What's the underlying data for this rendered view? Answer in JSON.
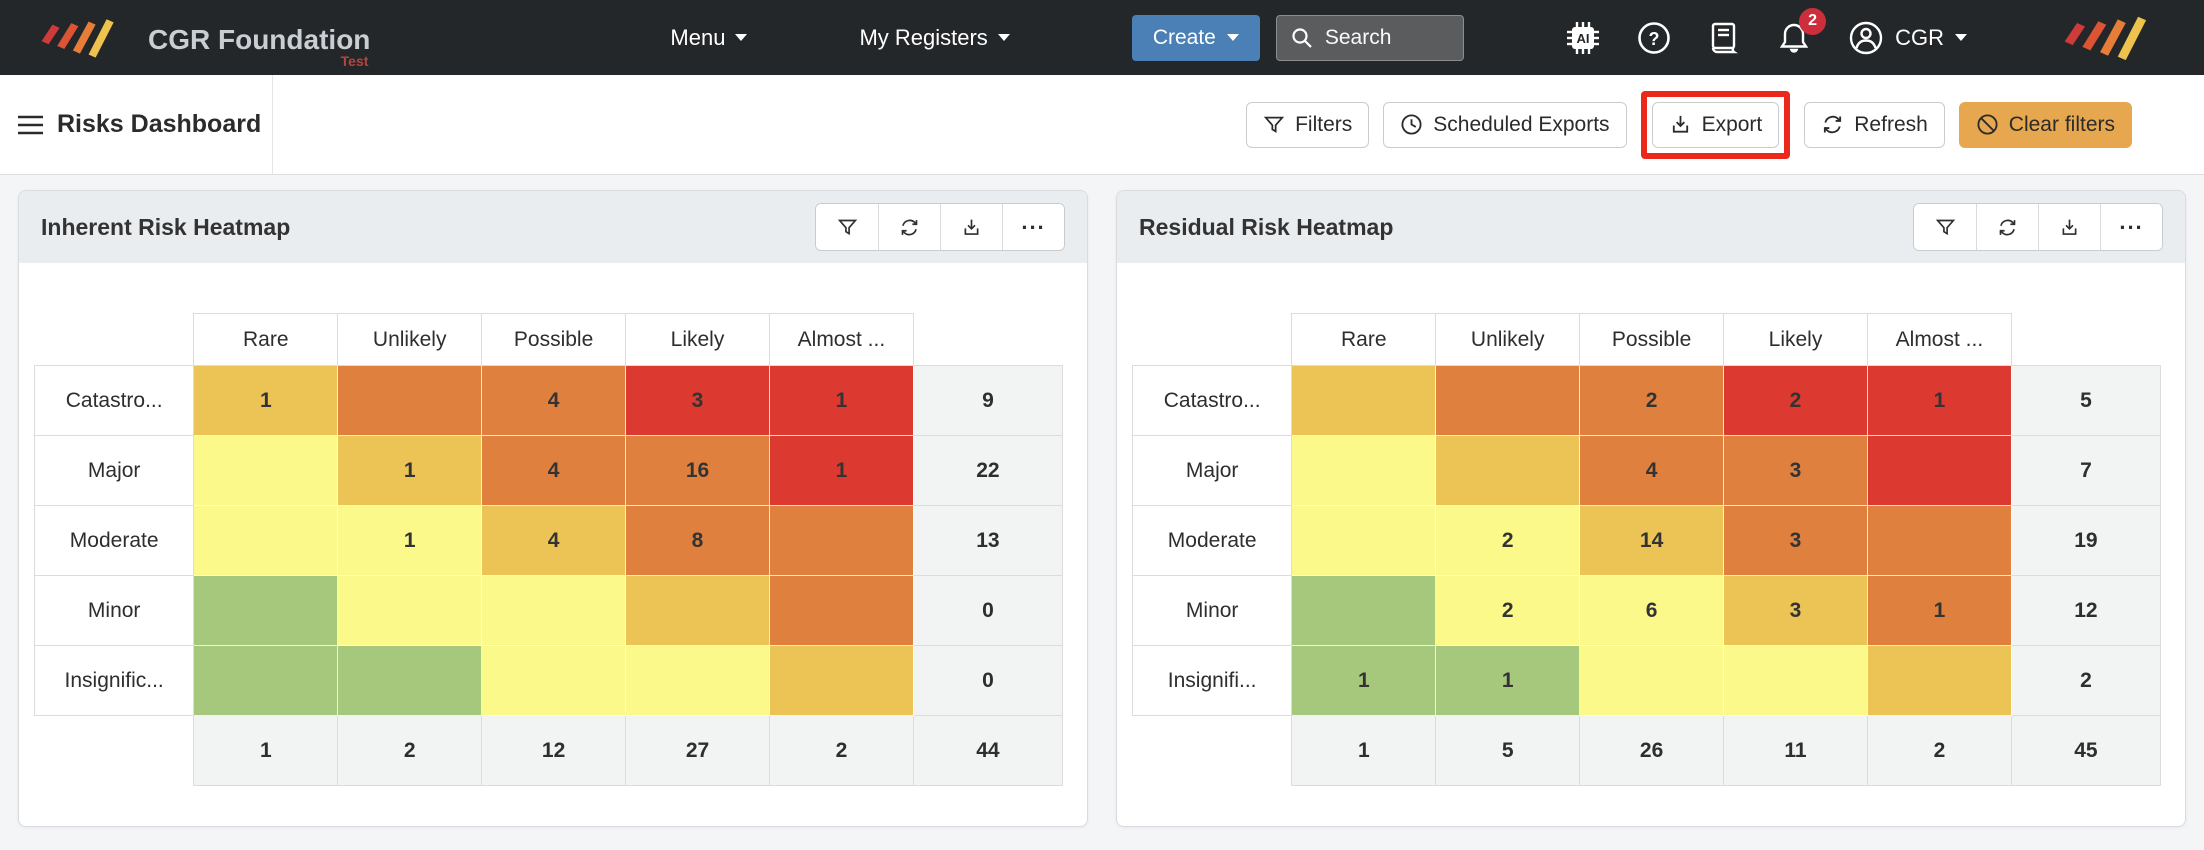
{
  "navbar": {
    "brand_name": "CGR Foundation",
    "brand_sub": "Test",
    "menu_label": "Menu",
    "my_registers_label": "My Registers",
    "create_label": "Create",
    "search_placeholder": "Search",
    "notification_count": "2",
    "user_label": "CGR"
  },
  "subheader": {
    "title": "Risks Dashboard",
    "filters_label": "Filters",
    "scheduled_exports_label": "Scheduled Exports",
    "export_label": "Export",
    "refresh_label": "Refresh",
    "clear_filters_label": "Clear filters"
  },
  "colors": {
    "navbar_bg": "#242729",
    "create_blue": "#4a80b5",
    "clear_filters_orange": "#e7a74e",
    "export_highlight_red": "#ea281c",
    "card_header_bg": "#e9edf0",
    "page_bg": "#f4f5f6",
    "totals_bg": "#f2f3f3"
  },
  "risk_colors": {
    "green": "#a6c87c",
    "yellow": "#fbf98a",
    "amber": "#ecc355",
    "orange": "#e0803e",
    "red": "#dc3a31"
  },
  "color_matrix": [
    [
      "amber",
      "orange",
      "orange",
      "red",
      "red"
    ],
    [
      "yellow",
      "amber",
      "orange",
      "orange",
      "red"
    ],
    [
      "yellow",
      "yellow",
      "amber",
      "orange",
      "orange"
    ],
    [
      "green",
      "yellow",
      "yellow",
      "amber",
      "orange"
    ],
    [
      "green",
      "green",
      "yellow",
      "yellow",
      "amber"
    ]
  ],
  "heatmaps": [
    {
      "title": "Inherent Risk Heatmap",
      "columns": [
        "Rare",
        "Unlikely",
        "Possible",
        "Likely",
        "Almost ..."
      ],
      "rows": [
        {
          "label": "Catastro...",
          "values": [
            "1",
            "",
            "4",
            "3",
            "1"
          ],
          "total": "9"
        },
        {
          "label": "Major",
          "values": [
            "",
            "1",
            "4",
            "16",
            "1"
          ],
          "total": "22"
        },
        {
          "label": "Moderate",
          "values": [
            "",
            "1",
            "4",
            "8",
            ""
          ],
          "total": "13"
        },
        {
          "label": "Minor",
          "values": [
            "",
            "",
            "",
            "",
            ""
          ],
          "total": "0"
        },
        {
          "label": "Insignific...",
          "values": [
            "",
            "",
            "",
            "",
            ""
          ],
          "total": "0"
        }
      ],
      "col_totals": [
        "1",
        "2",
        "12",
        "27",
        "2"
      ],
      "grand_total": "44"
    },
    {
      "title": "Residual Risk Heatmap",
      "columns": [
        "Rare",
        "Unlikely",
        "Possible",
        "Likely",
        "Almost ..."
      ],
      "rows": [
        {
          "label": "Catastro...",
          "values": [
            "",
            "",
            "2",
            "2",
            "1"
          ],
          "total": "5"
        },
        {
          "label": "Major",
          "values": [
            "",
            "",
            "4",
            "3",
            ""
          ],
          "total": "7"
        },
        {
          "label": "Moderate",
          "values": [
            "",
            "2",
            "14",
            "3",
            ""
          ],
          "total": "19"
        },
        {
          "label": "Minor",
          "values": [
            "",
            "2",
            "6",
            "3",
            "1"
          ],
          "total": "12"
        },
        {
          "label": "Insignifi...",
          "values": [
            "1",
            "1",
            "",
            "",
            ""
          ],
          "total": "2"
        }
      ],
      "col_totals": [
        "1",
        "5",
        "26",
        "11",
        "2"
      ],
      "grand_total": "45"
    }
  ]
}
